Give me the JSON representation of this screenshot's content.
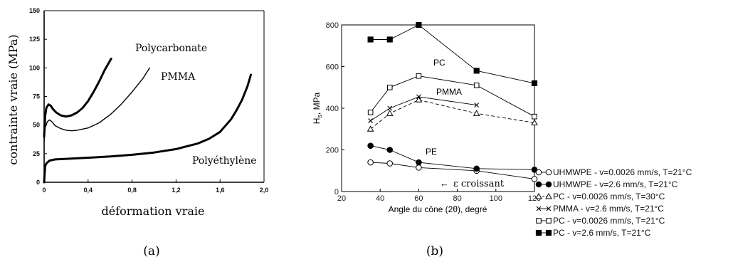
{
  "chart_data": [
    {
      "type": "line",
      "caption": "(a)",
      "xlabel": "déformation vraie",
      "ylabel": "contrainte vraie (MPa)",
      "xlim": [
        0,
        2.0
      ],
      "ylim": [
        0,
        150
      ],
      "xticks": [
        "0",
        "0,4",
        "0,8",
        "1,2",
        "1,6",
        "2,0"
      ],
      "yticks": [
        "0",
        "25",
        "50",
        "75",
        "100",
        "125",
        "150"
      ],
      "grid": false,
      "series": [
        {
          "name": "Polycarbonate",
          "points": [
            [
              0,
              40
            ],
            [
              0.01,
              58
            ],
            [
              0.02,
              65
            ],
            [
              0.04,
              68
            ],
            [
              0.06,
              67
            ],
            [
              0.08,
              64
            ],
            [
              0.11,
              61
            ],
            [
              0.15,
              58.5
            ],
            [
              0.2,
              57.5
            ],
            [
              0.25,
              58.5
            ],
            [
              0.3,
              61
            ],
            [
              0.35,
              65
            ],
            [
              0.4,
              71
            ],
            [
              0.45,
              79
            ],
            [
              0.5,
              88
            ],
            [
              0.55,
              98
            ],
            [
              0.61,
              108
            ]
          ]
        },
        {
          "name": "PMMA",
          "points": [
            [
              0,
              35
            ],
            [
              0.01,
              48
            ],
            [
              0.03,
              53
            ],
            [
              0.05,
              54.5
            ],
            [
              0.07,
              53
            ],
            [
              0.1,
              49.5
            ],
            [
              0.15,
              47
            ],
            [
              0.2,
              45.5
            ],
            [
              0.25,
              45
            ],
            [
              0.3,
              45.5
            ],
            [
              0.4,
              47.5
            ],
            [
              0.5,
              52
            ],
            [
              0.6,
              59
            ],
            [
              0.7,
              68
            ],
            [
              0.8,
              79
            ],
            [
              0.9,
              91
            ],
            [
              0.96,
              100
            ]
          ]
        },
        {
          "name": "Polyéthylène",
          "points": [
            [
              0,
              0
            ],
            [
              0.005,
              8
            ],
            [
              0.01,
              14
            ],
            [
              0.02,
              16.5
            ],
            [
              0.05,
              19
            ],
            [
              0.1,
              20
            ],
            [
              0.2,
              20.5
            ],
            [
              0.4,
              21.5
            ],
            [
              0.6,
              22.5
            ],
            [
              0.8,
              24
            ],
            [
              1.0,
              26
            ],
            [
              1.2,
              29
            ],
            [
              1.4,
              34
            ],
            [
              1.5,
              38
            ],
            [
              1.6,
              44
            ],
            [
              1.7,
              55
            ],
            [
              1.75,
              63
            ],
            [
              1.8,
              72
            ],
            [
              1.85,
              84
            ],
            [
              1.88,
              94
            ]
          ]
        }
      ]
    },
    {
      "type": "line",
      "caption": "(b)",
      "xlabel": "Angle du cône (2θ), degré",
      "ylabel": "Hs, MPa",
      "ylabel_main": "H",
      "ylabel_sub": "s",
      "ylabel_rest": ", MPa",
      "xlim": [
        20,
        120
      ],
      "ylim": [
        0,
        800
      ],
      "xticks": [
        20,
        40,
        60,
        80,
        100,
        120
      ],
      "yticks": [
        0,
        200,
        400,
        600,
        800
      ],
      "grid": false,
      "legend_position": "right",
      "annotations": {
        "pc": "PC",
        "pmma": "PMMA",
        "pe": "PE",
        "arrow_text": "ε croissant",
        "arrow_glyph": "←"
      },
      "series": [
        {
          "name": "UHMWPE - v=0.0026 mm/s, T=21°C",
          "marker": "circle-open",
          "dashed": false,
          "x": [
            35,
            45,
            60,
            90,
            120
          ],
          "y": [
            140,
            135,
            115,
            100,
            60
          ]
        },
        {
          "name": "UHMWPE - v=2.6 mm/s, T=21°C",
          "marker": "circle-filled",
          "dashed": false,
          "x": [
            35,
            45,
            60,
            90,
            120
          ],
          "y": [
            220,
            200,
            140,
            110,
            105
          ]
        },
        {
          "name": "PC - v=0.0026 mm/s, T=30°C",
          "marker": "triangle-open",
          "dashed": true,
          "x": [
            35,
            45,
            60,
            90,
            120
          ],
          "y": [
            300,
            375,
            440,
            375,
            330
          ]
        },
        {
          "name": "PMMA - v=2.6 mm/s, T=21°C",
          "marker": "cross",
          "dashed": false,
          "x": [
            35,
            45,
            60,
            90
          ],
          "y": [
            340,
            400,
            455,
            415
          ]
        },
        {
          "name": "PC - v=0.0026 mm/s, T=21°C",
          "marker": "square-open",
          "dashed": false,
          "x": [
            35,
            45,
            60,
            90,
            120
          ],
          "y": [
            380,
            500,
            555,
            510,
            360
          ]
        },
        {
          "name": "PC - v=2.6 mm/s, T=21°C",
          "marker": "square-filled",
          "dashed": false,
          "x": [
            35,
            45,
            60,
            90,
            120
          ],
          "y": [
            730,
            730,
            800,
            580,
            520
          ]
        }
      ]
    }
  ]
}
